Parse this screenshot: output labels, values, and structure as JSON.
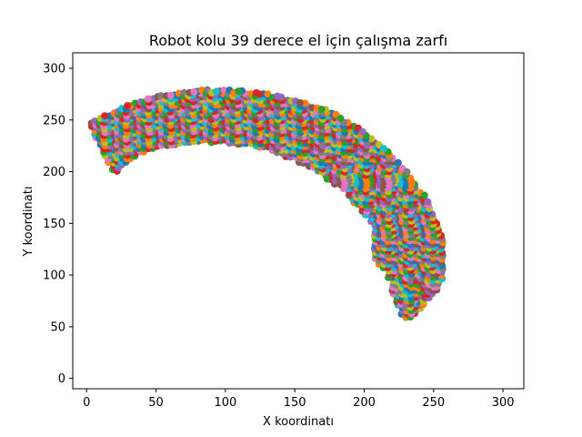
{
  "chart_data": {
    "type": "scatter",
    "title": "Robot kolu 39 derece el için çalışma zarfı",
    "xlabel": "X koordinatı",
    "ylabel": "Y koordinatı",
    "xlim": [
      -10,
      315
    ],
    "ylim": [
      -10,
      315
    ],
    "xticks": [
      0,
      50,
      100,
      150,
      200,
      250,
      300
    ],
    "yticks": [
      0,
      50,
      100,
      150,
      200,
      250,
      300
    ],
    "grid": false,
    "legend": "none",
    "region": {
      "description_points_outer": [
        [
          0,
          248
        ],
        [
          25,
          262
        ],
        [
          50,
          273
        ],
        [
          75,
          279
        ],
        [
          100,
          280
        ],
        [
          125,
          277
        ],
        [
          150,
          270
        ],
        [
          175,
          259
        ],
        [
          200,
          240
        ],
        [
          225,
          210
        ],
        [
          245,
          175
        ],
        [
          257,
          135
        ],
        [
          259,
          108
        ],
        [
          255,
          90
        ]
      ],
      "description_points_inner": [
        [
          20,
          198
        ],
        [
          40,
          218
        ],
        [
          70,
          228
        ],
        [
          100,
          228
        ],
        [
          130,
          222
        ],
        [
          160,
          205
        ],
        [
          185,
          182
        ],
        [
          205,
          150
        ],
        [
          207,
          115
        ],
        [
          215,
          105
        ],
        [
          228,
          55
        ],
        [
          240,
          65
        ],
        [
          250,
          80
        ]
      ],
      "x_range": [
        0,
        259
      ],
      "y_range": [
        52,
        280
      ],
      "lower_tip": [
        230,
        52
      ],
      "left_edge": [
        [
          0,
          198
        ],
        [
          0,
          250
        ]
      ]
    },
    "series_colors": [
      "#1f77b4",
      "#ff7f0e",
      "#2ca02c",
      "#d62728",
      "#9467bd",
      "#8c564b",
      "#e377c2",
      "#7f7f7f",
      "#bcbd22",
      "#17becf"
    ]
  }
}
